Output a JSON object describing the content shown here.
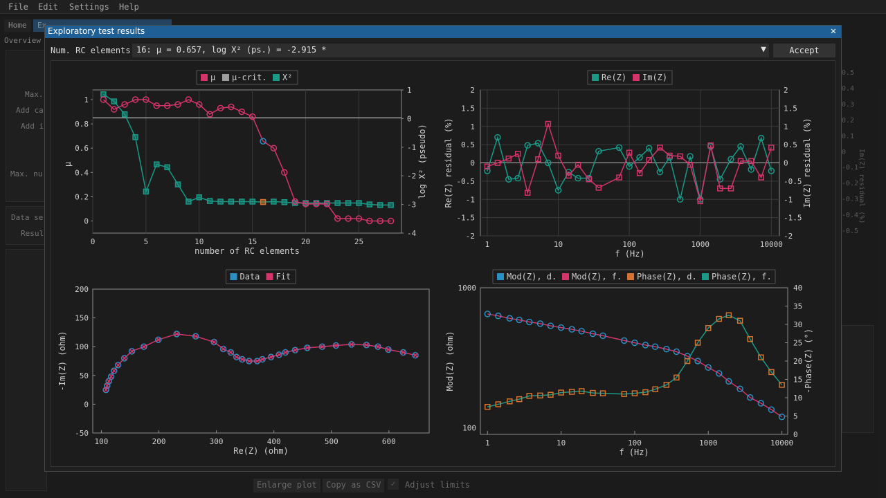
{
  "menu": [
    "File",
    "Edit",
    "Settings",
    "Help"
  ],
  "bg": {
    "tabs": [
      "Home",
      "Ex"
    ],
    "subtab": "Overview",
    "labels": [
      "Max.",
      "Add ca",
      "Add i",
      "Max. nu",
      "Data se",
      "Resul"
    ],
    "right_axis_values": [
      "0.5",
      "0.4",
      "0.3",
      "0.2",
      "0.1",
      "0",
      "-0.1",
      "-0.2",
      "-0.3",
      "-0.4",
      "-0.5"
    ],
    "right_axis_label": "Im(Z) residual (%)",
    "buttons": [
      "Enlarge plot",
      "Copy as CSV"
    ],
    "checkbox_label": "Adjust limits"
  },
  "modal": {
    "title": "Exploratory test results",
    "select_label": "Num. RC elements",
    "select_value": "16: μ = 0.657, log X² (ps.) = -2.915 *",
    "accept": "Accept"
  },
  "colors": {
    "mu": "#d6336c",
    "mucrit": "#9e9e9e",
    "chi": "#1a9987",
    "data": "#2a8fc2",
    "fit": "#d6336c",
    "phase_data": "#d5732f",
    "phase_fit": "#1a9987"
  },
  "chart_data": [
    {
      "type": "line",
      "legend": [
        "μ",
        "μ-crit.",
        "X²"
      ],
      "xlabel": "number of RC elements",
      "ylabel": "μ",
      "y2label": "log X² (pseudo)",
      "xlim": [
        0,
        29
      ],
      "ylim": [
        -0.1,
        1.08
      ],
      "y2lim": [
        -4,
        1
      ],
      "xticks": [
        "0",
        "5",
        "10",
        "15",
        "20",
        "25"
      ],
      "yticks": [
        "0",
        "0.2",
        "0.4",
        "0.6",
        "0.8",
        "1"
      ],
      "y2ticks": [
        "-4",
        "-3",
        "-2",
        "-1",
        "0",
        "1"
      ],
      "mu_crit": 0.85,
      "selected": 16,
      "x": [
        1,
        2,
        3,
        4,
        5,
        6,
        7,
        8,
        9,
        10,
        11,
        12,
        13,
        14,
        15,
        16,
        17,
        18,
        19,
        20,
        21,
        22,
        23,
        24,
        25,
        26,
        27,
        28
      ],
      "mu": [
        1.0,
        0.92,
        0.96,
        1.0,
        1.0,
        0.95,
        0.95,
        0.96,
        1.0,
        0.96,
        0.88,
        0.93,
        0.94,
        0.9,
        0.86,
        0.657,
        0.6,
        0.4,
        0.16,
        0.14,
        0.14,
        0.14,
        0.02,
        0.02,
        0.02,
        0.0,
        0.0,
        0.0
      ],
      "log_chi": [
        0.85,
        0.6,
        0.15,
        -0.65,
        -2.55,
        -1.6,
        -1.7,
        -2.3,
        -2.9,
        -2.75,
        -2.88,
        -2.9,
        -2.9,
        -2.9,
        -2.9,
        -2.915,
        -2.9,
        -2.92,
        -2.95,
        -2.95,
        -2.95,
        -2.95,
        -2.95,
        -2.95,
        -2.95,
        -3.0,
        -3.02,
        -3.02
      ]
    },
    {
      "type": "line",
      "legend": [
        "Re(Z)",
        "Im(Z)"
      ],
      "xlabel": "f (Hz)",
      "ylabel": "Re(Z) residual (%)",
      "y2label": "Im(Z) residual (%)",
      "xscale": "log",
      "xlim": [
        0.8,
        13000
      ],
      "ylim": [
        -2,
        2
      ],
      "xticks": [
        "1",
        "10",
        "100",
        "1000",
        "10000"
      ],
      "yticks": [
        "-2",
        "-1.5",
        "-1",
        "-0.5",
        "0",
        "0.5",
        "1",
        "1.5",
        "2"
      ],
      "x": [
        1,
        1.4,
        2,
        2.7,
        3.7,
        5.2,
        7.2,
        10,
        14,
        19,
        27,
        37,
        72,
        100,
        140,
        190,
        270,
        370,
        520,
        720,
        1000,
        1400,
        1900,
        2700,
        3700,
        5200,
        7200,
        10000
      ],
      "re": [
        -0.22,
        0.7,
        -0.45,
        -0.42,
        0.48,
        0.54,
        0.0,
        -0.75,
        -0.25,
        -0.42,
        -0.42,
        0.32,
        0.42,
        -0.1,
        0.15,
        0.4,
        -0.25,
        0.15,
        -1.0,
        0.18,
        -1.0,
        0.45,
        -0.45,
        0.1,
        0.45,
        -0.18,
        0.68,
        -0.22
      ],
      "im": [
        -0.1,
        0.0,
        0.12,
        0.25,
        -0.82,
        0.1,
        1.07,
        0.2,
        -0.35,
        -0.05,
        -0.45,
        -0.68,
        -0.4,
        0.28,
        -0.28,
        0.08,
        0.42,
        0.2,
        0.18,
        -0.05,
        -1.05,
        0.48,
        -0.7,
        -0.7,
        0.05,
        0.05,
        -0.4,
        0.42
      ]
    },
    {
      "type": "scatter",
      "legend": [
        "Data",
        "Fit"
      ],
      "xlabel": "Re(Z) (ohm)",
      "ylabel": "-Im(Z) (ohm)",
      "xlim": [
        85,
        670
      ],
      "ylim": [
        -50,
        200
      ],
      "xticks": [
        "100",
        "200",
        "300",
        "400",
        "500",
        "600"
      ],
      "yticks": [
        "-50",
        "0",
        "50",
        "100",
        "150",
        "200"
      ],
      "re": [
        646,
        625,
        599,
        581,
        561,
        535,
        508,
        484,
        458,
        437,
        420,
        409,
        395,
        380,
        371,
        357,
        345,
        335,
        325,
        312,
        296,
        264,
        231,
        199,
        174,
        153,
        140,
        129,
        122,
        117,
        113,
        110,
        108
      ],
      "im": [
        85,
        90,
        95,
        100,
        103,
        104,
        102,
        100,
        98,
        94,
        90,
        86,
        82,
        78,
        75,
        75,
        78,
        82,
        90,
        96,
        108,
        118,
        122,
        112,
        100,
        92,
        80,
        68,
        58,
        48,
        40,
        32,
        25
      ]
    },
    {
      "type": "line",
      "legend": [
        "Mod(Z), d.",
        "Mod(Z), f.",
        "Phase(Z), d.",
        "Phase(Z), f."
      ],
      "xlabel": "f (Hz)",
      "ylabel": "Mod(Z) (ohm)",
      "y2label": "-Phase(Z) (°)",
      "xscale": "log",
      "yscale": "log",
      "xlim": [
        0.8,
        12000
      ],
      "ylim": [
        90,
        1000
      ],
      "y2lim": [
        0,
        40
      ],
      "xticks": [
        "1",
        "10",
        "100",
        "1000",
        "10000"
      ],
      "yticks": [
        "100",
        "1000"
      ],
      "y2ticks": [
        "0",
        "5",
        "10",
        "15",
        "20",
        "25",
        "30",
        "35",
        "40"
      ],
      "x": [
        1,
        1.4,
        2,
        2.7,
        3.7,
        5.2,
        7.2,
        10,
        14,
        19,
        27,
        37,
        72,
        100,
        140,
        190,
        270,
        370,
        520,
        720,
        1000,
        1400,
        1900,
        2700,
        3700,
        5200,
        7200,
        10000
      ],
      "mod": [
        650,
        630,
        605,
        590,
        570,
        555,
        535,
        520,
        505,
        490,
        470,
        455,
        420,
        405,
        390,
        380,
        365,
        350,
        325,
        300,
        270,
        245,
        215,
        190,
        165,
        150,
        135,
        120
      ],
      "phase": [
        7.5,
        8.2,
        9.0,
        9.6,
        10.5,
        10.6,
        10.8,
        11.4,
        11.6,
        11.8,
        11.3,
        11.2,
        11.0,
        11.2,
        11.5,
        12.3,
        13.5,
        15.5,
        20.0,
        25.0,
        29.0,
        31.5,
        32.5,
        31.0,
        26.0,
        21.0,
        17.0,
        13.5
      ]
    }
  ]
}
